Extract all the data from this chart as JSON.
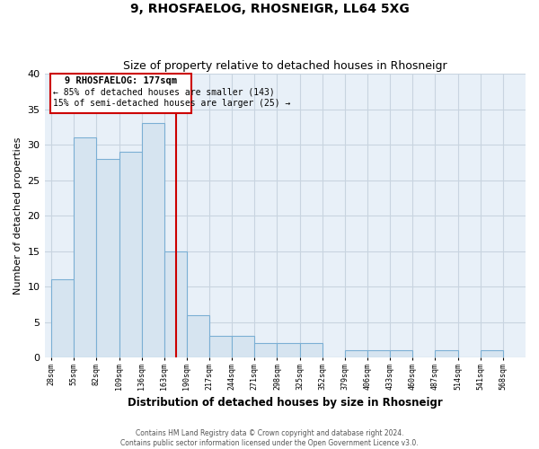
{
  "title": "9, RHOSFAELOG, RHOSNEIGR, LL64 5XG",
  "subtitle": "Size of property relative to detached houses in Rhosneigr",
  "xlabel": "Distribution of detached houses by size in Rhosneigr",
  "ylabel": "Number of detached properties",
  "bar_edges": [
    28,
    55,
    82,
    109,
    136,
    163,
    190,
    217,
    244,
    271,
    298,
    325,
    352,
    379,
    406,
    433,
    460,
    487,
    514,
    541,
    568
  ],
  "bar_heights": [
    11,
    31,
    28,
    29,
    33,
    15,
    6,
    3,
    3,
    2,
    2,
    2,
    0,
    1,
    1,
    1,
    0,
    1,
    0,
    1
  ],
  "property_size": 177,
  "bar_color": "#d6e4f0",
  "bar_edge_color": "#7bafd4",
  "vline_color": "#cc0000",
  "box_color": "#cc0000",
  "bg_color": "#e8f0f8",
  "grid_color": "#c8d4e0",
  "ylim": [
    0,
    40
  ],
  "annotation_title": "9 RHOSFAELOG: 177sqm",
  "annotation_line1": "← 85% of detached houses are smaller (143)",
  "annotation_line2": "15% of semi-detached houses are larger (25) →",
  "footer1": "Contains HM Land Registry data © Crown copyright and database right 2024.",
  "footer2": "Contains public sector information licensed under the Open Government Licence v3.0.",
  "tick_labels": [
    "28sqm",
    "55sqm",
    "82sqm",
    "109sqm",
    "136sqm",
    "163sqm",
    "190sqm",
    "217sqm",
    "244sqm",
    "271sqm",
    "298sqm",
    "325sqm",
    "352sqm",
    "379sqm",
    "406sqm",
    "433sqm",
    "460sqm",
    "487sqm",
    "514sqm",
    "541sqm",
    "568sqm"
  ],
  "yticks": [
    0,
    5,
    10,
    15,
    20,
    25,
    30,
    35,
    40
  ]
}
